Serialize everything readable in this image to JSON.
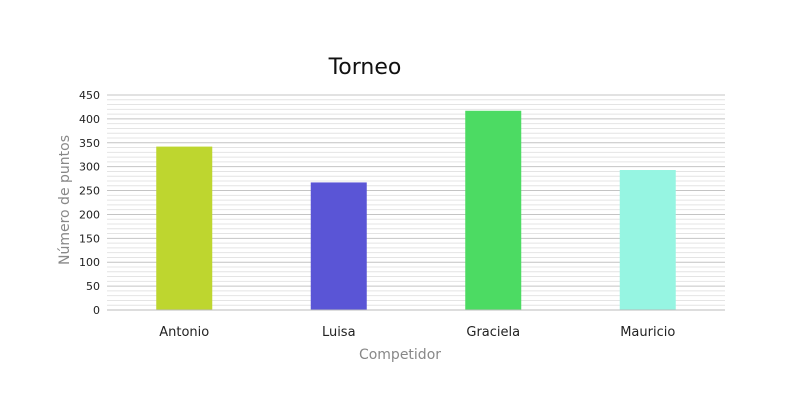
{
  "chart_data": {
    "type": "bar",
    "title": "Torneo",
    "xlabel": "Competidor",
    "ylabel": "Número de puntos",
    "categories": [
      "Antonio",
      "Luisa",
      "Graciela",
      "Mauricio"
    ],
    "values": [
      342,
      267,
      417,
      293
    ],
    "colors": [
      "#bed62f",
      "#5a55d6",
      "#4cdb63",
      "#96f5e2"
    ],
    "ylim": [
      0,
      450
    ],
    "yticks": [
      0,
      50,
      100,
      150,
      200,
      250,
      300,
      350,
      400,
      450
    ],
    "grid": true,
    "legend": "none"
  }
}
